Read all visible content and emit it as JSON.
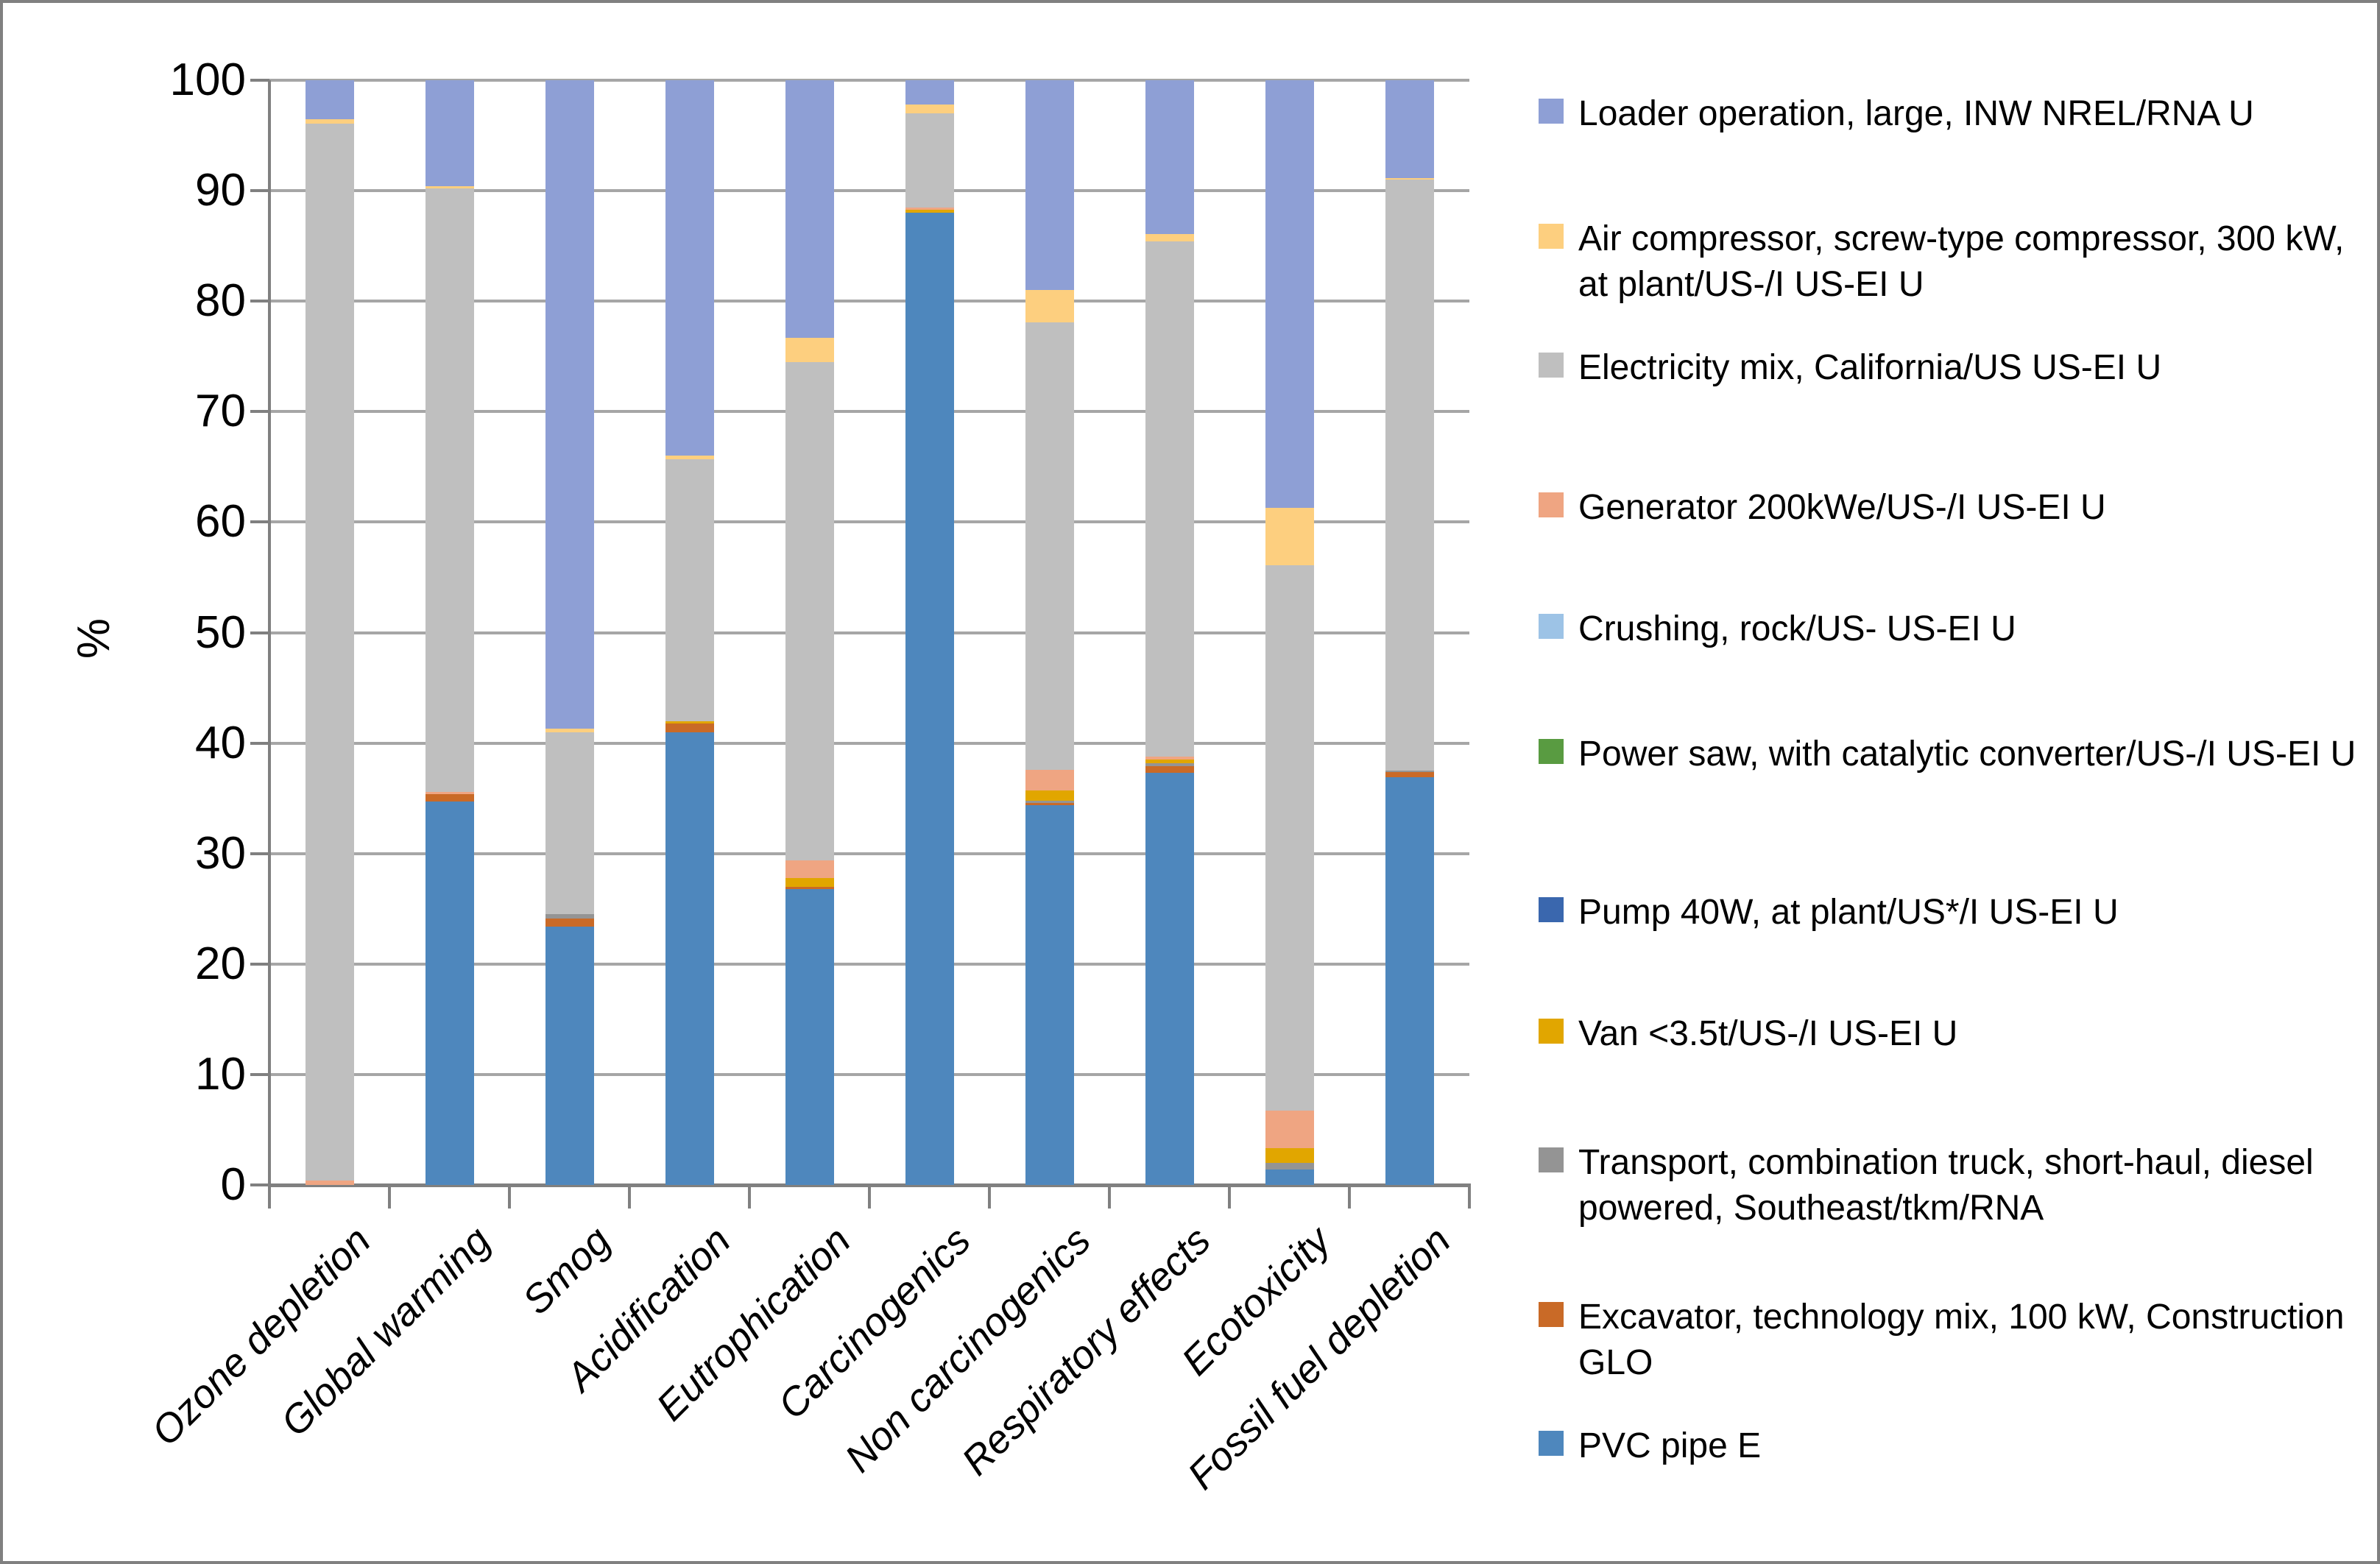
{
  "chart_data": {
    "type": "bar",
    "stacked": true,
    "title": "",
    "xlabel": "",
    "ylabel": "%",
    "ylim": [
      0,
      100
    ],
    "yticks": [
      0,
      10,
      20,
      30,
      40,
      50,
      60,
      70,
      80,
      90,
      100
    ],
    "grid": "horizontal",
    "legend_position": "right",
    "categories": [
      "Ozone depletion",
      "Global warming",
      "Smog",
      "Acidification",
      "Eutrophication",
      "Carcinogenics",
      "Non carcinogenics",
      "Respiratory effects",
      "Ecotoxicity",
      "Fossil fuel depletion"
    ],
    "series": [
      {
        "key": "loader-operation",
        "name": "Loader operation, large, INW NREL/RNA U",
        "color": "#8E9FD5",
        "values": [
          3.5,
          9.6,
          58.7,
          34.0,
          23.3,
          2.2,
          19.0,
          13.9,
          38.7,
          8.85
        ]
      },
      {
        "key": "air-compressor",
        "name": "Air compressor, screw-type compressor, 300 kW, at plant/US-/I US-EI U",
        "color": "#FDCF7F",
        "values": [
          0.4,
          0.2,
          0.3,
          0.3,
          2.2,
          0.8,
          2.9,
          0.7,
          5.2,
          0.15
        ]
      },
      {
        "key": "electricity-mix",
        "name": "Electricity mix, California/US US-EI U",
        "color": "#BFBFBF",
        "values": [
          95.7,
          54.6,
          16.5,
          23.7,
          45.1,
          8.5,
          40.5,
          46.6,
          49.4,
          53.5
        ]
      },
      {
        "key": "generator",
        "name": "Generator 200kWe/US-/I US-EI U",
        "color": "#EFA582",
        "values": [
          0.4,
          0.2,
          0,
          0,
          1.6,
          0.25,
          1.9,
          0.3,
          3.4,
          0
        ]
      },
      {
        "key": "crushing-rock",
        "name": "Crushing, rock/US- US-EI U",
        "color": "#9DC3E6",
        "values": [
          0,
          0,
          0,
          0,
          0,
          0,
          0,
          0,
          0,
          0
        ]
      },
      {
        "key": "power-saw",
        "name": "Power saw, with catalytic converter/US-/I US-EI U",
        "color": "#599B41",
        "values": [
          0,
          0,
          0,
          0,
          0,
          0,
          0,
          0,
          0,
          0
        ]
      },
      {
        "key": "pump-40w",
        "name": "Pump 40W, at plant/US*/I US-EI U",
        "color": "#3A67AE",
        "values": [
          0,
          0,
          0,
          0,
          0,
          0,
          0,
          0,
          0,
          0
        ]
      },
      {
        "key": "van",
        "name": "Van <3.5t/US-/I US-EI U",
        "color": "#E1A600",
        "values": [
          0,
          0,
          0,
          0.2,
          0.8,
          0.25,
          0.9,
          0.3,
          1.3,
          0
        ]
      },
      {
        "key": "transport-truck",
        "name": "Transport, combination truck, short-haul, diesel powered, Southeast/tkm/RNA",
        "color": "#949494",
        "values": [
          0,
          0,
          0.4,
          0,
          0,
          0,
          0.2,
          0.3,
          0.6,
          0.15
        ]
      },
      {
        "key": "excavator",
        "name": "Excavator, technology mix, 100 kW, Construction GLO",
        "color": "#C96A27",
        "values": [
          0,
          0.7,
          0.7,
          0.8,
          0.2,
          0,
          0.2,
          0.6,
          0,
          0.45
        ]
      },
      {
        "key": "pvc-pipe",
        "name": "PVC pipe E",
        "color": "#4E87BD",
        "values": [
          0,
          34.7,
          23.4,
          41.0,
          26.8,
          88.0,
          34.4,
          37.3,
          1.4,
          36.9
        ]
      }
    ]
  }
}
